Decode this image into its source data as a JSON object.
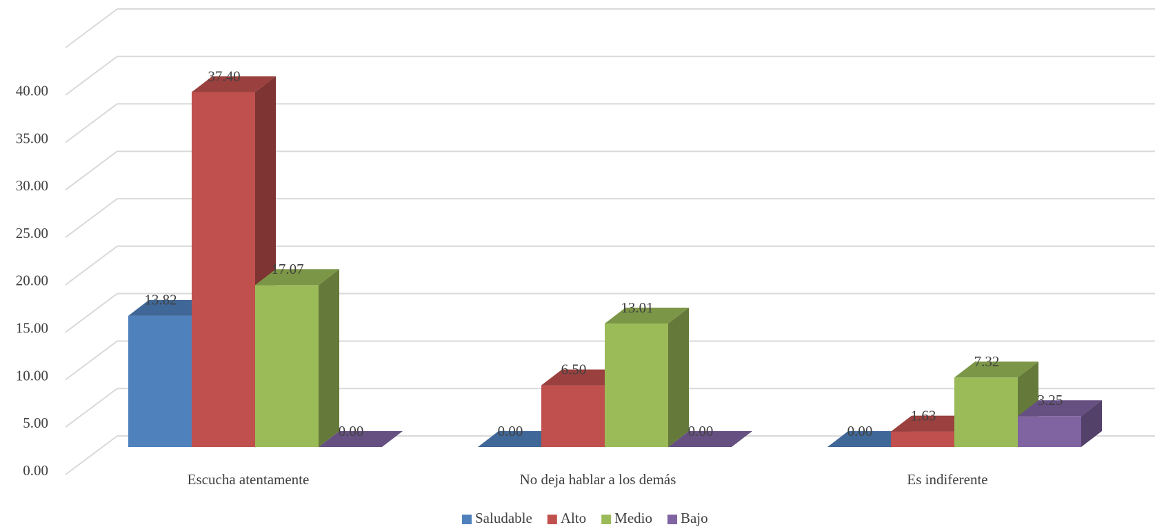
{
  "chart_data": {
    "type": "bar3d",
    "categories": [
      "Escucha atentamente",
      "No deja hablar a los demás",
      "Es indiferente"
    ],
    "series": [
      {
        "name": "Saludable",
        "color": "#4f81bd",
        "values": [
          13.82,
          0,
          0
        ],
        "value_labels": [
          "13.82",
          "0.00",
          "0.00"
        ]
      },
      {
        "name": "Alto",
        "color": "#c0504d",
        "values": [
          37.4,
          6.5,
          1.63
        ],
        "value_labels": [
          "37.40",
          "6.50",
          "1.63"
        ]
      },
      {
        "name": "Medio",
        "color": "#9bbb59",
        "values": [
          17.07,
          13.01,
          7.32
        ],
        "value_labels": [
          "17.07",
          "13.01",
          "7.32"
        ]
      },
      {
        "name": "Bajo",
        "color": "#8064a2",
        "values": [
          0,
          0,
          3.25
        ],
        "value_labels": [
          "0.00",
          "0.00",
          "3.25"
        ]
      }
    ],
    "ylim": [
      0,
      45
    ],
    "yticks": [
      {
        "value": 0,
        "label": "0.00"
      },
      {
        "value": 5,
        "label": "5.00"
      },
      {
        "value": 10,
        "label": "10.00"
      },
      {
        "value": 15,
        "label": "15.00"
      },
      {
        "value": 20,
        "label": "20.00"
      },
      {
        "value": 25,
        "label": "25.00"
      },
      {
        "value": 30,
        "label": "30.00"
      },
      {
        "value": 35,
        "label": "35.00"
      },
      {
        "value": 40,
        "label": "40.00"
      }
    ],
    "grid": true,
    "legend": "bottom"
  }
}
